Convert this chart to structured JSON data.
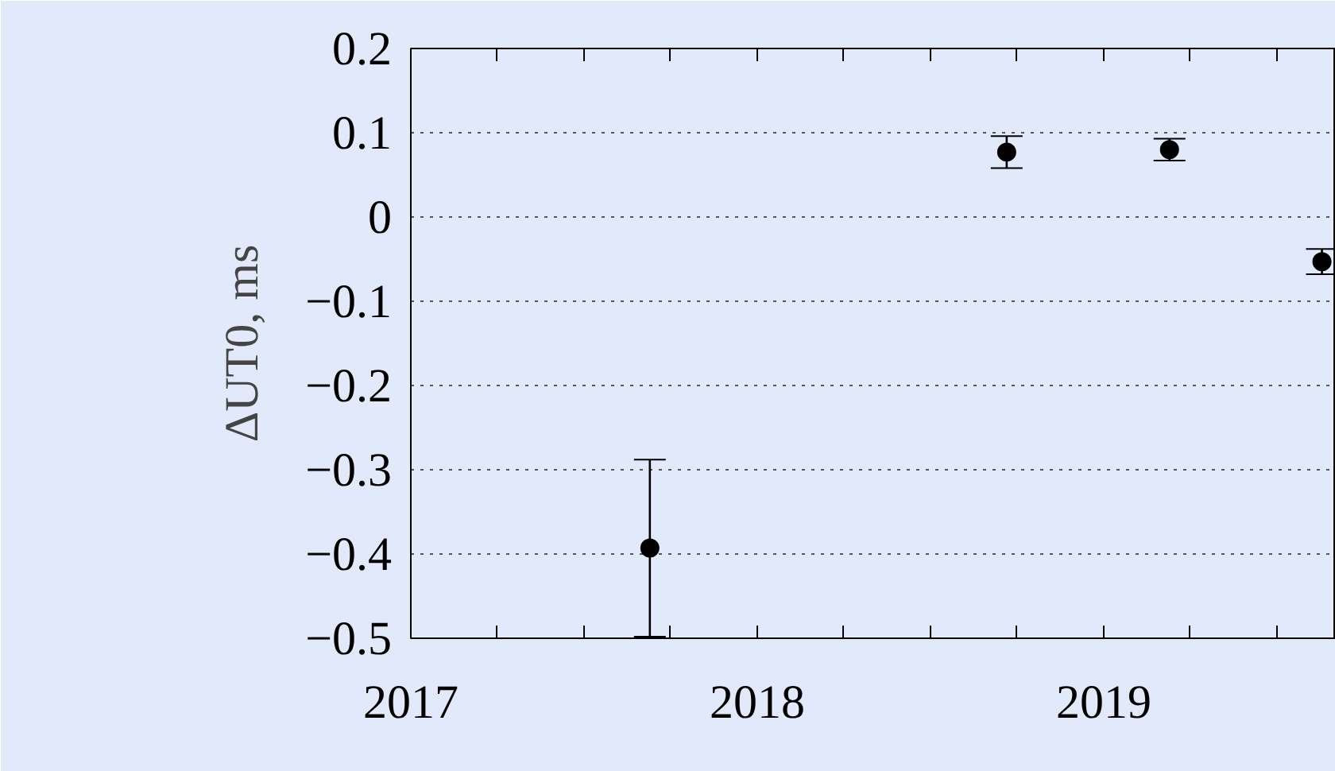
{
  "chart_data": {
    "type": "scatter",
    "ylabel": "ΔUT0, ms",
    "x": [
      2017.69,
      2018.72,
      2019.19,
      2019.63
    ],
    "series": [
      {
        "color": "#000000",
        "values": [
          -0.393,
          0.077,
          0.08,
          -0.053
        ],
        "errors": [
          0.105,
          0.019,
          0.013,
          0.015
        ]
      }
    ],
    "marker": "circle",
    "xlim": [
      2017,
      2019.67
    ],
    "xticks": [
      2017,
      {
        "value": 2017.25,
        "label": null
      },
      {
        "value": 2017.5,
        "label": null
      },
      {
        "value": 2017.75,
        "label": null
      },
      2018,
      {
        "value": 2018.25,
        "label": null
      },
      {
        "value": 2018.5,
        "label": null
      },
      {
        "value": 2018.75,
        "label": null
      },
      2019,
      {
        "value": 2019.25,
        "label": null
      },
      {
        "value": 2019.5,
        "label": null
      }
    ],
    "ylim": [
      -0.5,
      0.2
    ],
    "yticks": [
      {
        "value": -0.5,
        "label": "−0.5"
      },
      {
        "value": -0.4,
        "label": "−0.4"
      },
      {
        "value": -0.3,
        "label": "−0.3"
      },
      {
        "value": -0.2,
        "label": "−0.2"
      },
      {
        "value": -0.1,
        "label": "−0.1"
      },
      0,
      0.1,
      0.2
    ],
    "grid": "y"
  }
}
